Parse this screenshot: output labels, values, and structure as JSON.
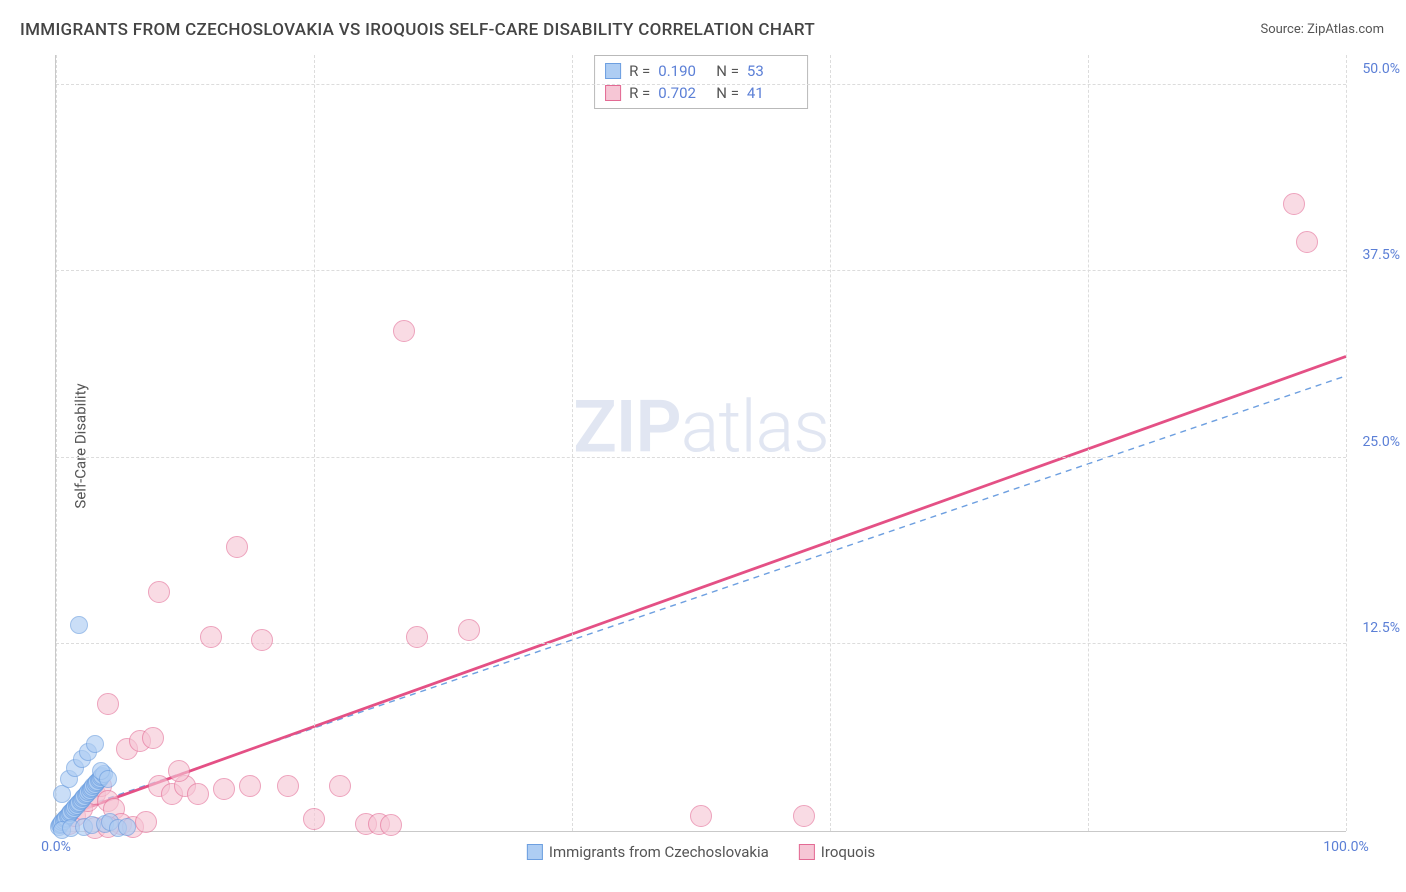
{
  "title": "IMMIGRANTS FROM CZECHOSLOVAKIA VS IROQUOIS SELF-CARE DISABILITY CORRELATION CHART",
  "source_prefix": "Source: ",
  "source": "ZipAtlas.com",
  "ylabel": "Self-Care Disability",
  "watermark_a": "ZIP",
  "watermark_b": "atlas",
  "chart": {
    "type": "scatter",
    "xlim": [
      0,
      100
    ],
    "ylim": [
      0,
      52
    ],
    "xticks": [
      0,
      20,
      40,
      60,
      80,
      100
    ],
    "xtick_labels": {
      "0": "0.0%",
      "100": "100.0%"
    },
    "yticks": [
      12.5,
      25.0,
      37.5,
      50.0
    ],
    "ytick_labels": [
      "12.5%",
      "25.0%",
      "37.5%",
      "50.0%"
    ],
    "background": "#ffffff",
    "grid_color": "#dcdcdc",
    "axis_color": "#c9c9c9",
    "tick_label_color": "#5b7fd6",
    "axis_label_color": "#555555",
    "watermark_color": "#c9d3e8"
  },
  "series": {
    "a": {
      "name": "Immigrants from Czechoslovakia",
      "fill": "#aecdf3",
      "stroke": "#6d9fe0",
      "marker_opacity": 0.65,
      "marker_radius": 9,
      "trend_color": "#6d9fe0",
      "trend_dash": "6 5",
      "trend_width": 1.4,
      "trend": {
        "x1": 0,
        "y1": 1.0,
        "x2": 100,
        "y2": 30.5
      },
      "R_label": "R =",
      "R": "0.190",
      "N_label": "N =",
      "N": "53",
      "points": [
        [
          0.2,
          0.3
        ],
        [
          0.3,
          0.4
        ],
        [
          0.4,
          0.5
        ],
        [
          0.5,
          0.6
        ],
        [
          0.6,
          0.7
        ],
        [
          0.7,
          0.8
        ],
        [
          0.8,
          0.9
        ],
        [
          0.9,
          1.0
        ],
        [
          1.0,
          1.1
        ],
        [
          1.1,
          1.2
        ],
        [
          1.2,
          1.3
        ],
        [
          1.3,
          1.4
        ],
        [
          1.4,
          1.5
        ],
        [
          1.5,
          1.6
        ],
        [
          1.6,
          1.7
        ],
        [
          1.7,
          1.8
        ],
        [
          1.8,
          1.9
        ],
        [
          1.9,
          2.0
        ],
        [
          2.0,
          2.1
        ],
        [
          2.1,
          2.2
        ],
        [
          2.2,
          2.3
        ],
        [
          2.3,
          2.4
        ],
        [
          2.4,
          2.5
        ],
        [
          2.5,
          2.6
        ],
        [
          2.6,
          2.7
        ],
        [
          2.7,
          2.8
        ],
        [
          2.8,
          2.9
        ],
        [
          2.9,
          3.0
        ],
        [
          3.0,
          3.1
        ],
        [
          3.1,
          3.2
        ],
        [
          3.2,
          3.3
        ],
        [
          3.3,
          3.4
        ],
        [
          3.4,
          3.5
        ],
        [
          3.5,
          3.6
        ],
        [
          3.6,
          3.7
        ],
        [
          3.7,
          3.8
        ],
        [
          0.5,
          2.5
        ],
        [
          1.0,
          3.5
        ],
        [
          1.5,
          4.2
        ],
        [
          2.0,
          4.8
        ],
        [
          2.5,
          5.3
        ],
        [
          3.0,
          5.8
        ],
        [
          3.5,
          4.0
        ],
        [
          4.0,
          3.5
        ],
        [
          1.8,
          13.8
        ],
        [
          0.5,
          0.1
        ],
        [
          1.2,
          0.2
        ],
        [
          2.2,
          0.3
        ],
        [
          2.8,
          0.4
        ],
        [
          3.8,
          0.5
        ],
        [
          4.2,
          0.6
        ],
        [
          4.8,
          0.2
        ],
        [
          5.5,
          0.3
        ]
      ]
    },
    "b": {
      "name": "Iroquois",
      "fill": "#f6c6d5",
      "stroke": "#e36a94",
      "marker_opacity": 0.62,
      "marker_radius": 11,
      "trend_color": "#e45085",
      "trend_dash": "",
      "trend_width": 2.8,
      "trend": {
        "x1": 0,
        "y1": 0.8,
        "x2": 100,
        "y2": 31.8
      },
      "R_label": "R =",
      "R": "0.702",
      "N_label": "N =",
      "N": "41",
      "points": [
        [
          1.0,
          0.5
        ],
        [
          1.5,
          1.0
        ],
        [
          2.0,
          1.5
        ],
        [
          2.5,
          2.0
        ],
        [
          3.0,
          2.5
        ],
        [
          3.5,
          3.0
        ],
        [
          4.0,
          2.0
        ],
        [
          4.5,
          1.5
        ],
        [
          5.0,
          0.5
        ],
        [
          6.0,
          0.3
        ],
        [
          7.0,
          0.6
        ],
        [
          8.0,
          3.0
        ],
        [
          9.0,
          2.5
        ],
        [
          10.0,
          3.0
        ],
        [
          11.0,
          2.5
        ],
        [
          12.0,
          13.0
        ],
        [
          13.0,
          2.8
        ],
        [
          14.0,
          19.0
        ],
        [
          15.0,
          3.0
        ],
        [
          16.0,
          12.8
        ],
        [
          18.0,
          3.0
        ],
        [
          20.0,
          0.8
        ],
        [
          22.0,
          3.0
        ],
        [
          24.0,
          0.5
        ],
        [
          25.0,
          0.5
        ],
        [
          26.0,
          0.4
        ],
        [
          27.0,
          33.5
        ],
        [
          28.0,
          13.0
        ],
        [
          32.0,
          13.5
        ],
        [
          50.0,
          1.0
        ],
        [
          58.0,
          1.0
        ],
        [
          8.0,
          16.0
        ],
        [
          5.5,
          5.5
        ],
        [
          6.5,
          6.0
        ],
        [
          7.5,
          6.2
        ],
        [
          4.0,
          8.5
        ],
        [
          9.5,
          4.0
        ],
        [
          96.0,
          42.0
        ],
        [
          97.0,
          39.5
        ],
        [
          3.0,
          0.2
        ],
        [
          4.0,
          0.3
        ]
      ]
    }
  },
  "bottom_legend": [
    "a",
    "b"
  ]
}
